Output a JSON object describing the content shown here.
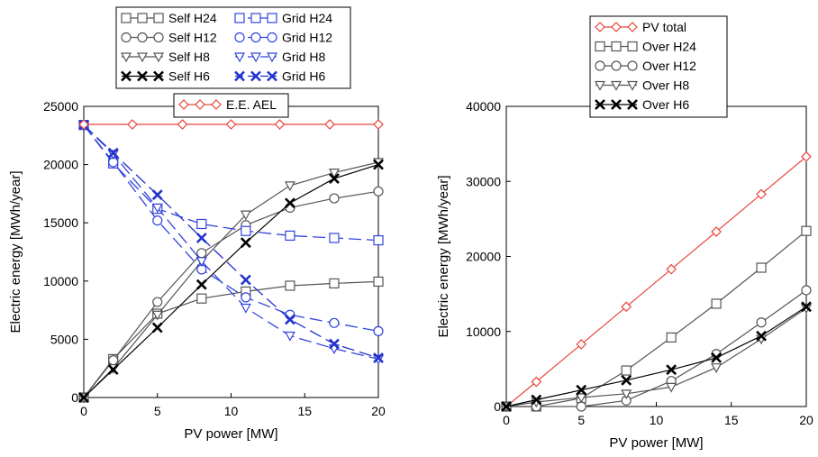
{
  "chart_data": [
    {
      "type": "line",
      "xlabel": "PV power [MW]",
      "ylabel": "Electric energy [MWh/year]",
      "xlim": [
        0,
        20
      ],
      "ylim": [
        0,
        25000
      ],
      "xticks": [
        0,
        5,
        10,
        15,
        20
      ],
      "yticks": [
        0,
        5000,
        10000,
        15000,
        20000,
        25000
      ],
      "grid": false,
      "legend": "top, outside plot area (two boxes)",
      "series": [
        {
          "name": "Self H24",
          "color": "#555555",
          "marker": "square",
          "dash": "solid",
          "x": [
            0,
            2,
            5,
            8,
            11,
            14,
            17,
            20
          ],
          "y": [
            0,
            3300,
            7200,
            8500,
            9100,
            9600,
            9800,
            9950
          ]
        },
        {
          "name": "Self H12",
          "color": "#555555",
          "marker": "circle",
          "dash": "solid",
          "x": [
            0,
            2,
            5,
            8,
            11,
            14,
            17,
            20
          ],
          "y": [
            0,
            3200,
            8200,
            12400,
            14800,
            16300,
            17100,
            17700
          ]
        },
        {
          "name": "Self H8",
          "color": "#555555",
          "marker": "triangle-down",
          "dash": "solid",
          "x": [
            0,
            2,
            5,
            8,
            11,
            14,
            17,
            20
          ],
          "y": [
            0,
            2500,
            7100,
            11700,
            15700,
            18200,
            19300,
            20200
          ]
        },
        {
          "name": "Self H6",
          "color": "#000000",
          "marker": "x",
          "dash": "solid",
          "x": [
            0,
            2,
            5,
            8,
            11,
            14,
            17,
            20
          ],
          "y": [
            0,
            2400,
            6000,
            9700,
            13300,
            16700,
            18800,
            20000
          ]
        },
        {
          "name": "Grid H24",
          "color": "#3344dd",
          "marker": "square",
          "dash": "dashed",
          "x": [
            0,
            2,
            5,
            8,
            11,
            14,
            17,
            20
          ],
          "y": [
            23400,
            20100,
            16200,
            14900,
            14300,
            13900,
            13700,
            13500
          ]
        },
        {
          "name": "Grid H12",
          "color": "#3344dd",
          "marker": "circle",
          "dash": "dashed",
          "x": [
            0,
            2,
            5,
            8,
            11,
            14,
            17,
            20
          ],
          "y": [
            23400,
            20200,
            15200,
            11000,
            8600,
            7100,
            6400,
            5700
          ]
        },
        {
          "name": "Grid H8",
          "color": "#3344dd",
          "marker": "triangle-down",
          "dash": "dashed",
          "x": [
            0,
            2,
            5,
            8,
            11,
            14,
            17,
            20
          ],
          "y": [
            23400,
            20900,
            16300,
            11700,
            7700,
            5300,
            4200,
            3300
          ]
        },
        {
          "name": "Grid H6",
          "color": "#2233cc",
          "marker": "x",
          "dash": "dashed",
          "x": [
            0,
            2,
            5,
            8,
            11,
            14,
            17,
            20
          ],
          "y": [
            23400,
            21000,
            17400,
            13700,
            10100,
            6700,
            4600,
            3400
          ]
        },
        {
          "name": "E.E. AEL",
          "color": "#e8453c",
          "marker": "diamond",
          "dash": "solid",
          "x": [
            0,
            3.3,
            6.7,
            10,
            13.3,
            16.7,
            20
          ],
          "y": [
            23450,
            23450,
            23450,
            23450,
            23450,
            23450,
            23450
          ]
        }
      ],
      "legend_boxes": [
        {
          "columns": 2,
          "items": [
            "Self H24",
            "Grid H24",
            "Self H12",
            "Grid H12",
            "Self H8",
            "Grid H8",
            "Self H6",
            "Grid H6"
          ]
        },
        {
          "columns": 1,
          "items": [
            "E.E. AEL"
          ]
        }
      ]
    },
    {
      "type": "line",
      "xlabel": "PV power [MW]",
      "ylabel": "Electric energy [MWh/year]",
      "xlim": [
        0,
        20
      ],
      "ylim": [
        0,
        40000
      ],
      "xticks": [
        0,
        5,
        10,
        15,
        20
      ],
      "yticks": [
        0,
        10000,
        20000,
        30000,
        40000
      ],
      "grid": false,
      "legend": "top-left, inside plot area",
      "series": [
        {
          "name": "PV total",
          "color": "#e8453c",
          "marker": "diamond",
          "dash": "solid",
          "x": [
            0,
            2,
            5,
            8,
            11,
            14,
            17,
            20
          ],
          "y": [
            0,
            3300,
            8300,
            13300,
            18300,
            23300,
            28300,
            33300
          ]
        },
        {
          "name": "Over H24",
          "color": "#555555",
          "marker": "square",
          "dash": "solid",
          "x": [
            0,
            2,
            5,
            8,
            11,
            14,
            17,
            20
          ],
          "y": [
            0,
            0,
            1100,
            4800,
            9200,
            13700,
            18500,
            23400
          ]
        },
        {
          "name": "Over H12",
          "color": "#555555",
          "marker": "circle",
          "dash": "solid",
          "x": [
            0,
            2,
            5,
            8,
            11,
            14,
            17,
            20
          ],
          "y": [
            0,
            0,
            0,
            800,
            3400,
            7000,
            11200,
            15500
          ]
        },
        {
          "name": "Over H8",
          "color": "#555555",
          "marker": "triangle-down",
          "dash": "solid",
          "x": [
            0,
            2,
            5,
            8,
            11,
            14,
            17,
            20
          ],
          "y": [
            0,
            600,
            1200,
            1700,
            2600,
            5200,
            9000,
            13100
          ]
        },
        {
          "name": "Over H6",
          "color": "#000000",
          "marker": "x",
          "dash": "solid",
          "x": [
            0,
            2,
            5,
            8,
            11,
            14,
            17,
            20
          ],
          "y": [
            0,
            900,
            2200,
            3500,
            4900,
            6500,
            9400,
            13300
          ]
        }
      ],
      "legend_boxes": [
        {
          "columns": 1,
          "items": [
            "PV total",
            "Over H24",
            "Over H12",
            "Over H8",
            "Over H6"
          ]
        }
      ]
    }
  ]
}
